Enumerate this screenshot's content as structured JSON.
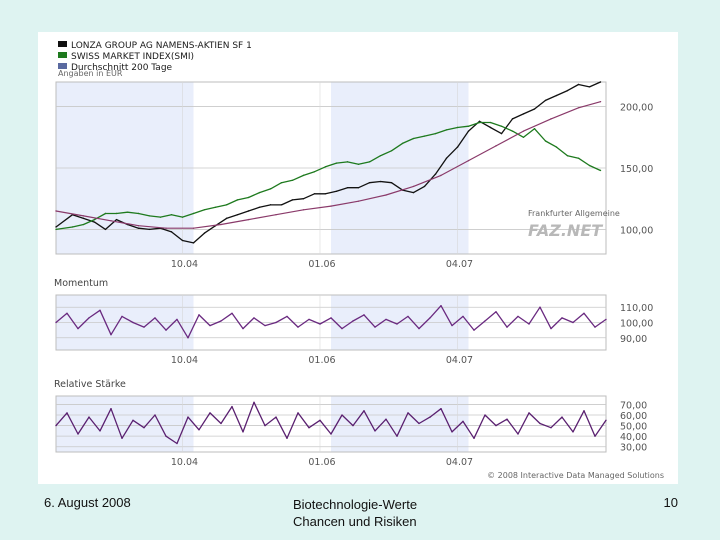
{
  "slide": {
    "date": "6. August 2008",
    "title_line1": "Biotechnologie-Werte",
    "title_line2": "Chancen und Risiken",
    "page_number": "10"
  },
  "colors": {
    "lonza": "#111111",
    "smi": "#1e7a1e",
    "ma200": "#8a3a6a",
    "momentum": "#6a2a80",
    "rsi": "#5a2070",
    "shade": "#e9eefb",
    "grid": "#c8c8c8",
    "legend_ma": "#5a6aa0"
  },
  "chart_data": [
    {
      "type": "line",
      "panel": "price",
      "legend": [
        {
          "label": "LONZA GROUP AG NAMENS-AKTIEN SF 1",
          "color_key": "lonza"
        },
        {
          "label": "SWISS MARKET INDEX(SMI)",
          "color_key": "smi"
        },
        {
          "label": "Durchschnitt 200 Tage",
          "color_key": "legend_ma"
        }
      ],
      "note": "Angaben in EUR",
      "watermark_small": "Frankfurter Allgemeine",
      "watermark": "FAZ.NET",
      "x_tick_labels": [
        "10.04",
        "01.06",
        "04.07"
      ],
      "y_tick_labels": [
        "200,00",
        "150,00",
        "100,00"
      ],
      "y_ticks": [
        200,
        150,
        100
      ],
      "ylim": [
        80,
        220
      ],
      "x_range": [
        0,
        100
      ],
      "x_ticks": [
        23,
        48,
        73
      ],
      "shade_bands": [
        [
          0,
          25
        ],
        [
          50,
          75
        ]
      ],
      "series": [
        {
          "key": "lonza",
          "x": [
            0,
            3,
            5,
            7,
            9,
            11,
            13,
            15,
            17,
            19,
            21,
            23,
            25,
            27,
            29,
            31,
            33,
            35,
            37,
            39,
            41,
            43,
            45,
            47,
            49,
            51,
            53,
            55,
            57,
            59,
            61,
            63,
            65,
            67,
            69,
            71,
            73,
            75,
            77,
            79,
            81,
            83,
            85,
            87,
            89,
            91,
            93,
            95,
            97,
            99
          ],
          "values": [
            102,
            112,
            109,
            106,
            100,
            108,
            104,
            101,
            100,
            101,
            98,
            91,
            89,
            97,
            103,
            109,
            112,
            115,
            118,
            120,
            120,
            124,
            125,
            129,
            129,
            131,
            134,
            134,
            138,
            139,
            138,
            132,
            130,
            135,
            145,
            158,
            167,
            180,
            188,
            183,
            178,
            190,
            194,
            198,
            205,
            209,
            213,
            218,
            216,
            220
          ]
        },
        {
          "key": "smi",
          "x": [
            0,
            3,
            5,
            7,
            9,
            11,
            13,
            15,
            17,
            19,
            21,
            23,
            25,
            27,
            29,
            31,
            33,
            35,
            37,
            39,
            41,
            43,
            45,
            47,
            49,
            51,
            53,
            55,
            57,
            59,
            61,
            63,
            65,
            67,
            69,
            71,
            73,
            75,
            77,
            79,
            81,
            83,
            85,
            87,
            89,
            91,
            93,
            95,
            97,
            99
          ],
          "values": [
            100,
            102,
            104,
            108,
            113,
            113,
            114,
            113,
            111,
            110,
            112,
            110,
            113,
            116,
            118,
            120,
            124,
            126,
            130,
            133,
            138,
            140,
            144,
            147,
            151,
            154,
            155,
            153,
            155,
            160,
            164,
            170,
            174,
            176,
            178,
            181,
            183,
            184,
            187,
            187,
            184,
            180,
            175,
            182,
            172,
            167,
            160,
            158,
            152,
            148
          ]
        },
        {
          "key": "ma200",
          "x": [
            0,
            5,
            10,
            15,
            20,
            25,
            30,
            35,
            40,
            45,
            50,
            55,
            60,
            65,
            70,
            75,
            80,
            85,
            90,
            95,
            99
          ],
          "values": [
            115,
            111,
            107,
            103,
            101,
            101,
            104,
            108,
            112,
            116,
            119,
            123,
            128,
            135,
            144,
            156,
            168,
            180,
            190,
            199,
            204
          ]
        }
      ]
    },
    {
      "type": "line",
      "panel": "momentum",
      "title": "Momentum",
      "x_tick_labels": [
        "10.04",
        "01.06",
        "04.07"
      ],
      "y_tick_labels": [
        "110,00",
        "100,00",
        "90,00"
      ],
      "y_ticks": [
        110,
        100,
        90
      ],
      "ylim": [
        82,
        118
      ],
      "x_range": [
        0,
        100
      ],
      "series": [
        {
          "key": "momentum",
          "x": [
            0,
            2,
            4,
            6,
            8,
            10,
            12,
            14,
            16,
            18,
            20,
            22,
            24,
            26,
            28,
            30,
            32,
            34,
            36,
            38,
            40,
            42,
            44,
            46,
            48,
            50,
            52,
            54,
            56,
            58,
            60,
            62,
            64,
            66,
            68,
            70,
            72,
            74,
            76,
            78,
            80,
            82,
            84,
            86,
            88,
            90,
            92,
            94,
            96,
            98,
            100
          ],
          "values": [
            100,
            106,
            96,
            103,
            108,
            92,
            104,
            100,
            97,
            103,
            95,
            102,
            90,
            105,
            98,
            101,
            106,
            96,
            103,
            98,
            100,
            104,
            97,
            102,
            99,
            103,
            96,
            101,
            105,
            97,
            102,
            99,
            104,
            96,
            103,
            111,
            98,
            104,
            95,
            101,
            107,
            97,
            104,
            99,
            110,
            96,
            103,
            100,
            106,
            97,
            102
          ]
        }
      ]
    },
    {
      "type": "line",
      "panel": "relative_strength",
      "title": "Relative Stärke",
      "x_tick_labels": [
        "10.04",
        "01.06",
        "04.07"
      ],
      "y_tick_labels": [
        "70,00",
        "60,00",
        "50,00",
        "40,00",
        "30,00"
      ],
      "y_ticks": [
        70,
        60,
        50,
        40,
        30
      ],
      "ylim": [
        25,
        78
      ],
      "x_range": [
        0,
        100
      ],
      "series": [
        {
          "key": "rsi",
          "x": [
            0,
            2,
            4,
            6,
            8,
            10,
            12,
            14,
            16,
            18,
            20,
            22,
            24,
            26,
            28,
            30,
            32,
            34,
            36,
            38,
            40,
            42,
            44,
            46,
            48,
            50,
            52,
            54,
            56,
            58,
            60,
            62,
            64,
            66,
            68,
            70,
            72,
            74,
            76,
            78,
            80,
            82,
            84,
            86,
            88,
            90,
            92,
            94,
            96,
            98,
            100
          ],
          "values": [
            50,
            62,
            42,
            58,
            45,
            66,
            38,
            55,
            48,
            60,
            40,
            33,
            58,
            46,
            62,
            52,
            68,
            44,
            72,
            50,
            58,
            38,
            62,
            48,
            55,
            42,
            60,
            50,
            64,
            45,
            56,
            40,
            62,
            52,
            58,
            66,
            44,
            54,
            38,
            60,
            50,
            56,
            42,
            62,
            52,
            48,
            58,
            44,
            64,
            40,
            55
          ]
        }
      ]
    }
  ],
  "copyright": "© 2008 Interactive Data Managed Solutions"
}
